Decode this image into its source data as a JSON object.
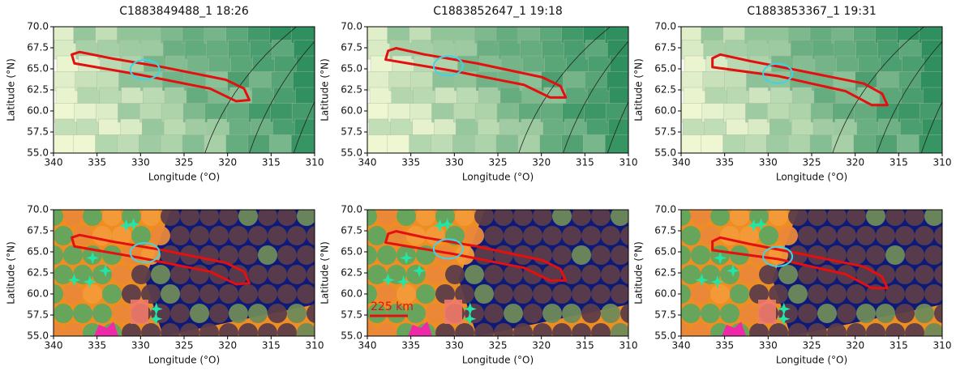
{
  "chart_data": [
    {
      "type": "map",
      "title": "C1883849488_1  18:26",
      "xlabel": "Longitude (°O)",
      "ylabel": "Latitude (°N)",
      "style": "reflectance",
      "xlim": [
        340,
        310
      ],
      "xticks": [
        340,
        335,
        330,
        325,
        320,
        315,
        310
      ],
      "ylim": [
        55,
        70
      ],
      "yticks": [
        {
          "value": 55,
          "label": "55.0"
        },
        57.5,
        {
          "value": 60,
          "label": "60.0"
        },
        62.5,
        {
          "value": 65,
          "label": "65.0"
        },
        67.5,
        {
          "value": 70,
          "label": "70.0"
        }
      ]
    },
    {
      "type": "map",
      "title": "C1883852647_1  19:18",
      "xlabel": "Longitude (°O)",
      "ylabel": "Latitude (°N)",
      "style": "reflectance",
      "xlim": [
        340,
        310
      ],
      "xticks": [
        340,
        335,
        330,
        325,
        320,
        315,
        310
      ],
      "ylim": [
        55,
        70
      ],
      "yticks": [
        {
          "value": 55,
          "label": "55.0"
        },
        57.5,
        {
          "value": 60,
          "label": "60.0"
        },
        62.5,
        {
          "value": 65,
          "label": "65.0"
        },
        67.5,
        {
          "value": 70,
          "label": "70.0"
        }
      ]
    },
    {
      "type": "map",
      "title": "C1883853367_1  19:31",
      "xlabel": "Longitude (°O)",
      "ylabel": "Latitude (°N)",
      "style": "reflectance",
      "xlim": [
        340,
        310
      ],
      "xticks": [
        340,
        335,
        330,
        325,
        320,
        315,
        310
      ],
      "ylim": [
        55,
        70
      ],
      "yticks": [
        {
          "value": 55,
          "label": "55.0"
        },
        57.5,
        {
          "value": 60,
          "label": "60.0"
        },
        62.5,
        {
          "value": 65,
          "label": "65.0"
        },
        67.5,
        {
          "value": 70,
          "label": "70.0"
        }
      ]
    },
    {
      "type": "map",
      "xlabel": "Longitude (°O)",
      "ylabel": "Latitude (°N)",
      "style": "classes",
      "xlim": [
        340,
        310
      ],
      "xticks": [
        340,
        335,
        330,
        325,
        320,
        315,
        310
      ],
      "ylim": [
        55,
        70
      ],
      "yticks": [
        {
          "value": 55,
          "label": "55.0"
        },
        57.5,
        {
          "value": 60,
          "label": "60.0"
        },
        62.5,
        {
          "value": 65,
          "label": "65.0"
        },
        67.5,
        {
          "value": 70,
          "label": "70.0"
        }
      ]
    },
    {
      "type": "map",
      "xlabel": "Longitude (°O)",
      "ylabel": "Latitude (°N)",
      "style": "classes",
      "annotation": "225 km",
      "xlim": [
        340,
        310
      ],
      "xticks": [
        340,
        335,
        330,
        325,
        320,
        315,
        310
      ],
      "ylim": [
        55,
        70
      ],
      "yticks": [
        {
          "value": 55,
          "label": "55.0"
        },
        57.5,
        {
          "value": 60,
          "label": "60.0"
        },
        62.5,
        {
          "value": 65,
          "label": "65.0"
        },
        67.5,
        {
          "value": 70,
          "label": "70.0"
        }
      ]
    },
    {
      "type": "map",
      "xlabel": "Longitude (°O)",
      "ylabel": "Latitude (°N)",
      "style": "classes",
      "xlim": [
        340,
        310
      ],
      "xticks": [
        340,
        335,
        330,
        325,
        320,
        315,
        310
      ],
      "ylim": [
        55,
        70
      ],
      "yticks": [
        {
          "value": 55,
          "label": "55.0"
        },
        57.5,
        {
          "value": 60,
          "label": "60.0"
        },
        62.5,
        {
          "value": 65,
          "label": "65.0"
        },
        67.5,
        {
          "value": 70,
          "label": "70.0"
        }
      ]
    }
  ]
}
